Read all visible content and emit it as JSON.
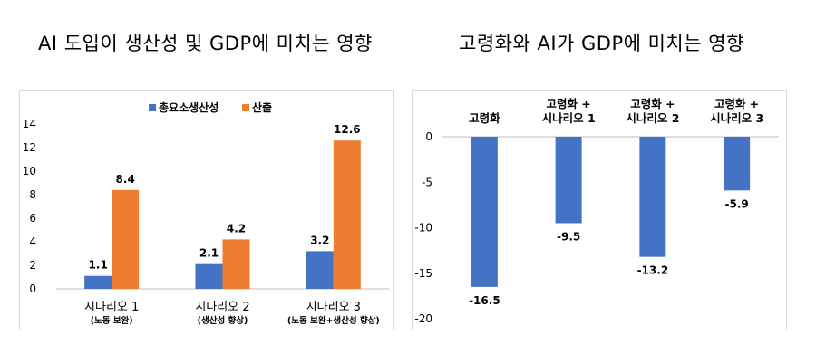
{
  "titles": {
    "left": "AI 도입이 생산성 및 GDP에 미치는 영향",
    "right": "고령화와 AI가 GDP에 미치는 영향"
  },
  "chart_data": [
    {
      "type": "bar",
      "categories": [
        [
          "시나리오 1",
          "(노동 보완)"
        ],
        [
          "시나리오 2",
          "(생산성 향상)"
        ],
        [
          "시나리오 3",
          "(노동 보완+생산성 향상)"
        ]
      ],
      "series": [
        {
          "name": "총요소생산성",
          "values": [
            1.1,
            2.1,
            3.2
          ],
          "color": "#4472C4"
        },
        {
          "name": "산출",
          "values": [
            8.4,
            4.2,
            12.6
          ],
          "color": "#ED7D31"
        }
      ],
      "value_labels": [
        [
          "1.1",
          "2.1",
          "3.2"
        ],
        [
          "8.4",
          "4.2",
          "12.6"
        ]
      ],
      "ylim": [
        0,
        14
      ],
      "yticks": [
        "0",
        "2",
        "4",
        "6",
        "8",
        "10",
        "12",
        "14"
      ],
      "legend_position": "top",
      "grid": false
    },
    {
      "type": "bar",
      "categories": [
        [
          "고령화"
        ],
        [
          "고령화 +",
          "시나리오 1"
        ],
        [
          "고령화 +",
          "시나리오 2"
        ],
        [
          "고령화 +",
          "시나리오 3"
        ]
      ],
      "series": [
        {
          "values": [
            -16.5,
            -9.5,
            -13.2,
            -5.9
          ],
          "color": "#4472C4"
        }
      ],
      "value_labels": [
        "-16.5",
        "-9.5",
        "-13.2",
        "-5.9"
      ],
      "ylim": [
        -20,
        0
      ],
      "yticks": [
        "0",
        "-5",
        "-10",
        "-15",
        "-20"
      ],
      "category_labels_position": "top",
      "legend_position": "none",
      "grid": false
    }
  ]
}
